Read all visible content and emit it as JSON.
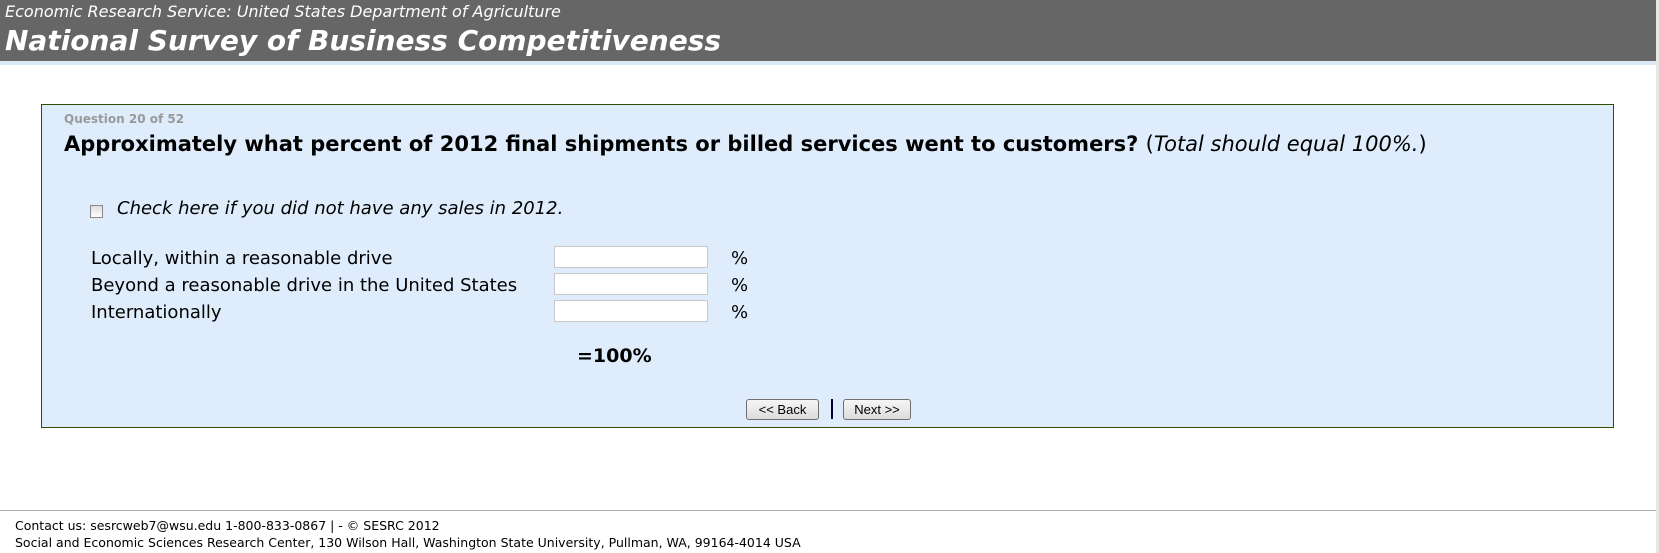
{
  "header": {
    "subtitle": "Economic Research Service: United States Department of Agriculture",
    "title": "National Survey of Business Competitiveness"
  },
  "question": {
    "number": "Question 20 of 52",
    "text": "Approximately what percent of 2012 final shipments or billed services went to customers?",
    "note_open": "(",
    "note": "Total should equal 100%.",
    "note_close": ")",
    "checkbox_label": "Check here if you did not have any sales in 2012.",
    "checkbox_checked": false,
    "rows": [
      {
        "label": "Locally, within a reasonable drive",
        "value": "",
        "unit": "%"
      },
      {
        "label": "Beyond a reasonable drive in the United States",
        "value": "",
        "unit": "%"
      },
      {
        "label": "Internationally",
        "value": "",
        "unit": "%"
      }
    ],
    "total_label": "=100%"
  },
  "nav": {
    "back": "<< Back",
    "next": "Next >>"
  },
  "footer": {
    "line1": "Contact us: sesrcweb7@wsu.edu 1-800-833-0867 | - © SESRC 2012",
    "line2": "Social and Economic Sciences Research Center, 130 Wilson Hall, Washington State University, Pullman, WA, 99164-4014 USA"
  }
}
